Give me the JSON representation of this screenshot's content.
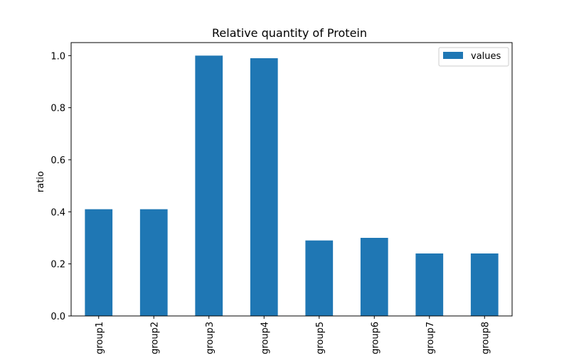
{
  "chart_data": {
    "type": "bar",
    "title": "Relative quantity of Protein",
    "xlabel": "",
    "ylabel": "ratio",
    "categories": [
      "group1",
      "group2",
      "group3",
      "group4",
      "group5",
      "group6",
      "group7",
      "group8"
    ],
    "series": [
      {
        "name": "values",
        "values": [
          0.41,
          0.41,
          1.0,
          0.99,
          0.29,
          0.3,
          0.24,
          0.24
        ]
      }
    ],
    "ylim": [
      0,
      1.05
    ],
    "yticks": [
      0.0,
      0.2,
      0.4,
      0.6,
      0.8,
      1.0
    ],
    "ytick_labels": [
      "0.0",
      "0.2",
      "0.4",
      "0.6",
      "0.8",
      "1.0"
    ],
    "grid": false,
    "legend_position": "top-right",
    "bar_color": "#1f77b4"
  }
}
